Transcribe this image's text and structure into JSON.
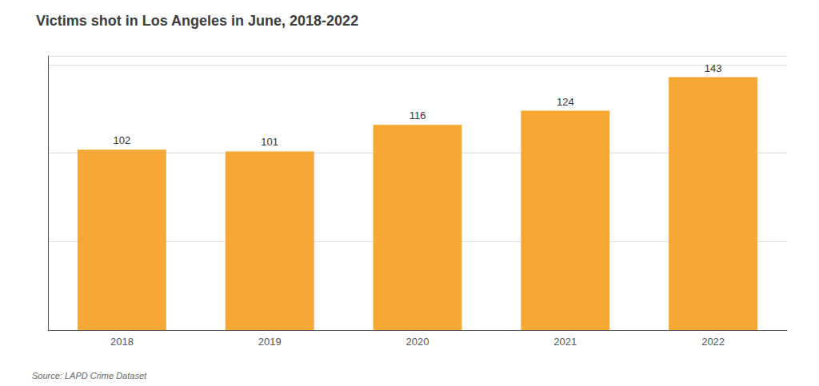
{
  "chart_data": {
    "type": "bar",
    "title": "Victims shot in Los Angeles in June, 2018-2022",
    "categories": [
      "2018",
      "2019",
      "2020",
      "2021",
      "2022"
    ],
    "values": [
      102,
      101,
      116,
      124,
      143
    ],
    "color": "#F5A833",
    "ylim": [
      0,
      155
    ],
    "yticks": [
      50,
      100,
      150
    ],
    "grid": true,
    "data_labels": true,
    "tick_labels": "x",
    "source": "Source: LAPD Crime Dataset"
  }
}
